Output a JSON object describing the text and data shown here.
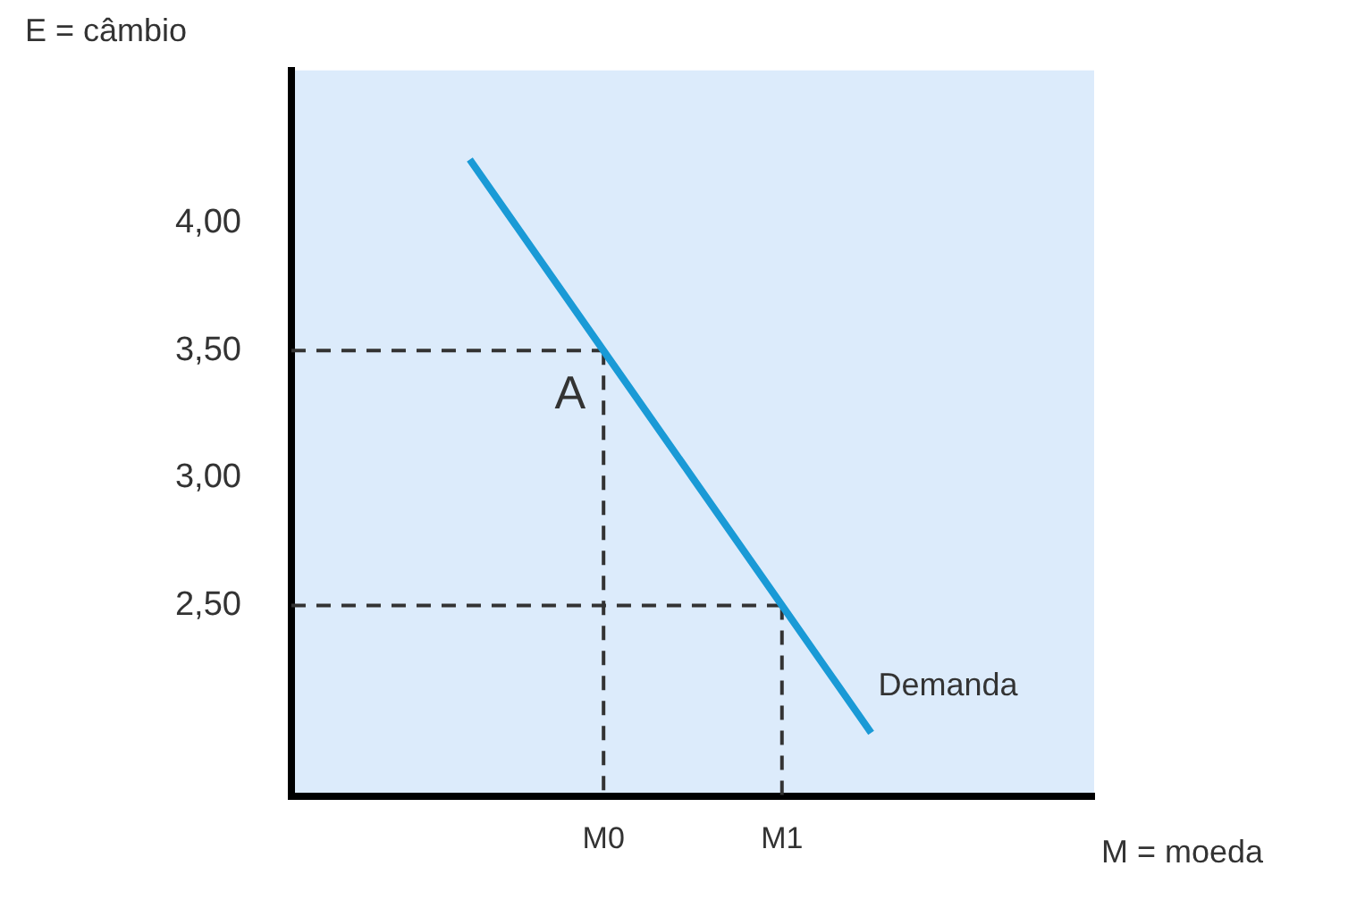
{
  "chart_data": {
    "type": "line",
    "xlabel": "M = moeda",
    "ylabel": "E = câmbio",
    "categories": [
      null,
      null,
      null,
      null,
      null,
      null,
      null,
      "M0",
      null,
      null,
      null,
      "M1",
      null,
      null,
      null,
      null,
      null,
      null,
      null
    ],
    "ylim": [
      1.75,
      4.6
    ],
    "yticks": [
      {
        "value": 2.5,
        "label": "2,50"
      },
      {
        "value": 3,
        "label": "3,00"
      },
      {
        "value": 3.5,
        "label": "3,50"
      },
      {
        "value": 4,
        "label": "4,00"
      }
    ],
    "grid": false,
    "legend": false,
    "marker": "none",
    "annotations": [
      {
        "text": "A",
        "x": "M0",
        "y": 3.5
      }
    ],
    "series": [
      {
        "name": "Demanda",
        "color": "#1a9ad6",
        "line_style": "solid",
        "values": [
          null,
          null,
          null,
          null,
          4.25,
          4.0,
          3.75,
          3.5,
          3.25,
          3.0,
          2.75,
          2.5,
          2.25,
          2.0,
          null,
          null,
          null,
          null,
          null
        ]
      },
      {
        "color": "#333333",
        "line_style": "dashed",
        "values": [
          3.5,
          3.5,
          3.5,
          3.5,
          3.5,
          3.5,
          3.5,
          3.5,
          null,
          null,
          null,
          null,
          null,
          null,
          null,
          null,
          null,
          null,
          null
        ]
      },
      {
        "color": "#333333",
        "line_style": "dashed",
        "values": [
          2.5,
          2.5,
          2.5,
          2.5,
          2.5,
          2.5,
          2.5,
          2.5,
          2.5,
          2.5,
          2.5,
          2.5,
          null,
          null,
          null,
          null,
          null,
          null,
          null
        ]
      },
      {
        "color": "#333333",
        "line_style": "dashed",
        "x": [
          "M0",
          "M0"
        ],
        "values": [
          3.5,
          1.75
        ]
      },
      {
        "color": "#333333",
        "line_style": "dashed",
        "x": [
          "M1",
          "M1"
        ],
        "values": [
          2.5,
          1.75
        ]
      }
    ]
  }
}
